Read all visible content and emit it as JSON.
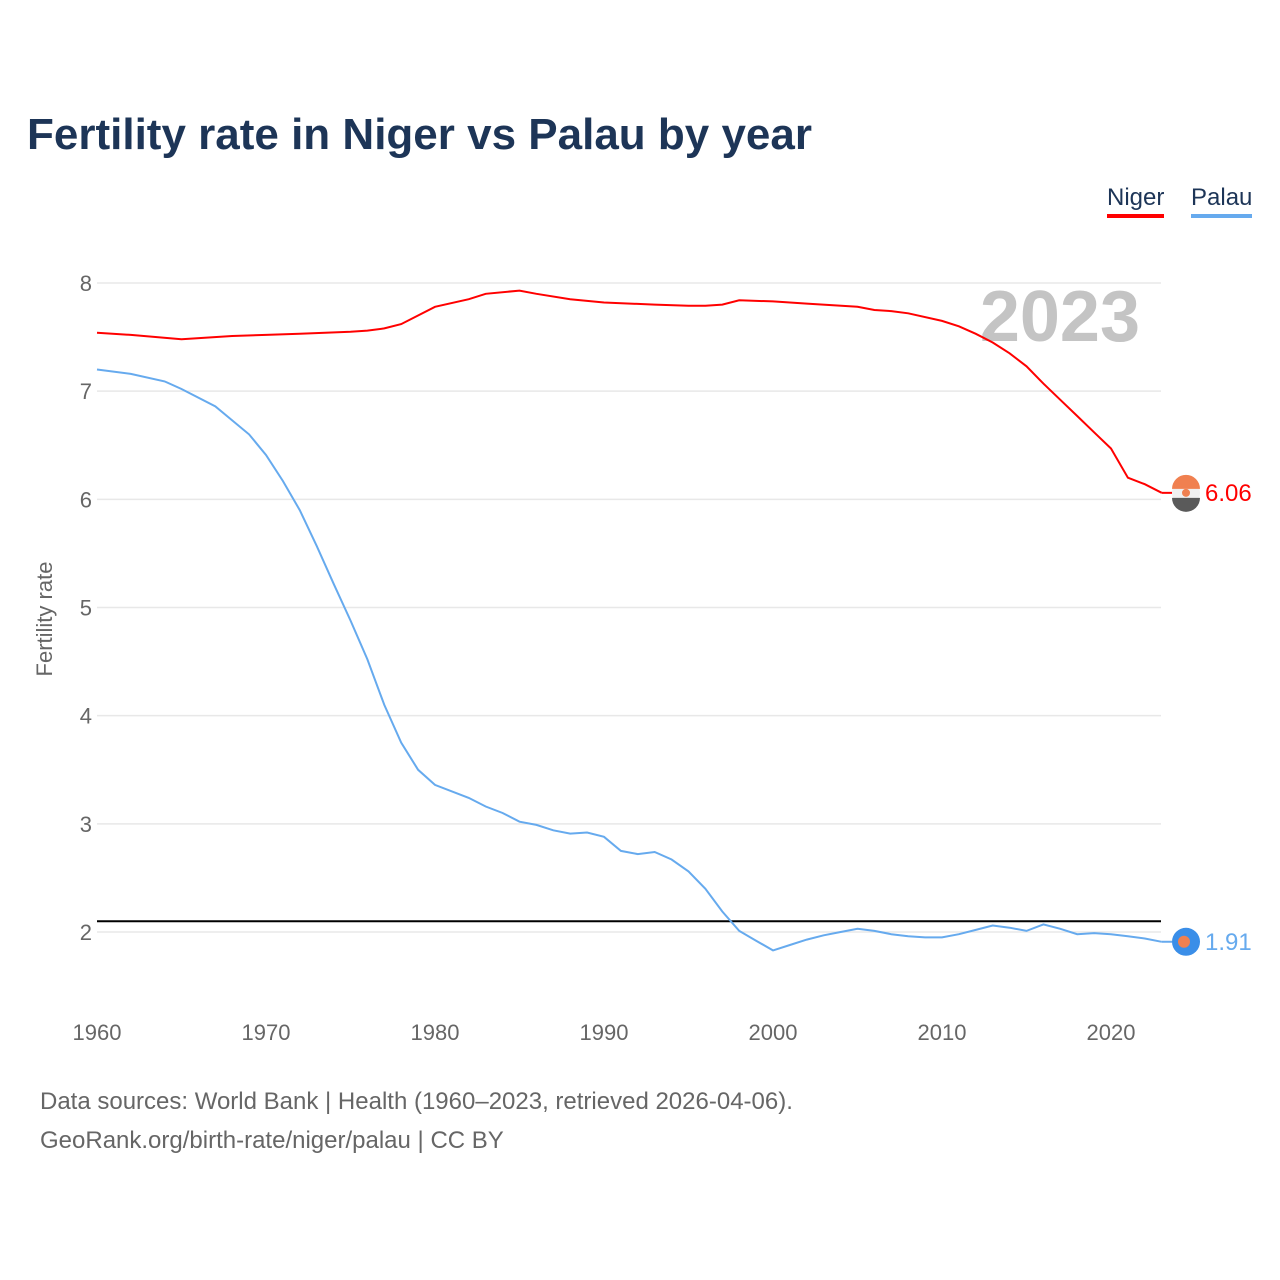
{
  "chart_data": {
    "type": "line",
    "title": "Fertility rate in Niger vs Palau by year",
    "ylabel": "Fertility rate",
    "xlabel": "",
    "xlim": [
      1960,
      2023
    ],
    "ylim": [
      1.5,
      8.2
    ],
    "x_ticks": [
      1960,
      1970,
      1980,
      1990,
      2000,
      2010,
      2020
    ],
    "y_ticks": [
      2,
      3,
      4,
      5,
      6,
      7,
      8
    ],
    "grid": true,
    "legend_position": "top-right",
    "year_label": "2023",
    "reference_line": 2.1,
    "series": [
      {
        "name": "Niger",
        "color": "#ff0000",
        "end_label": "6.06",
        "x": [
          1960,
          1962,
          1965,
          1968,
          1970,
          1972,
          1975,
          1976,
          1977,
          1978,
          1980,
          1982,
          1983,
          1985,
          1986,
          1988,
          1990,
          1993,
          1995,
          1996,
          1997,
          1998,
          2000,
          2002,
          2005,
          2006,
          2007,
          2008,
          2010,
          2011,
          2012,
          2013,
          2014,
          2015,
          2016,
          2017,
          2018,
          2019,
          2020,
          2021,
          2022,
          2023
        ],
        "y": [
          7.54,
          7.52,
          7.48,
          7.51,
          7.52,
          7.53,
          7.55,
          7.56,
          7.58,
          7.62,
          7.78,
          7.85,
          7.9,
          7.93,
          7.9,
          7.85,
          7.82,
          7.8,
          7.79,
          7.79,
          7.8,
          7.84,
          7.83,
          7.81,
          7.78,
          7.75,
          7.74,
          7.72,
          7.65,
          7.6,
          7.53,
          7.45,
          7.35,
          7.23,
          7.07,
          6.92,
          6.77,
          6.62,
          6.47,
          6.2,
          6.14,
          6.06
        ]
      },
      {
        "name": "Palau",
        "color": "#66aaee",
        "end_label": "1.91",
        "x": [
          1960,
          1962,
          1964,
          1965,
          1967,
          1969,
          1970,
          1971,
          1972,
          1973,
          1974,
          1975,
          1976,
          1977,
          1978,
          1979,
          1980,
          1982,
          1983,
          1984,
          1985,
          1986,
          1987,
          1988,
          1989,
          1990,
          1991,
          1992,
          1993,
          1994,
          1995,
          1996,
          1997,
          1998,
          1999,
          2000,
          2001,
          2002,
          2003,
          2004,
          2005,
          2006,
          2007,
          2008,
          2009,
          2010,
          2011,
          2012,
          2013,
          2014,
          2015,
          2016,
          2017,
          2018,
          2019,
          2020,
          2021,
          2022,
          2023
        ],
        "y": [
          7.2,
          7.16,
          7.09,
          7.02,
          6.86,
          6.6,
          6.41,
          6.17,
          5.9,
          5.57,
          5.22,
          4.88,
          4.52,
          4.1,
          3.75,
          3.5,
          3.36,
          3.24,
          3.16,
          3.1,
          3.02,
          2.99,
          2.94,
          2.91,
          2.92,
          2.88,
          2.75,
          2.72,
          2.74,
          2.67,
          2.56,
          2.4,
          2.19,
          2.01,
          1.92,
          1.83,
          1.88,
          1.93,
          1.97,
          2.0,
          2.03,
          2.01,
          1.98,
          1.96,
          1.95,
          1.95,
          1.98,
          2.02,
          2.06,
          2.04,
          2.01,
          2.07,
          2.03,
          1.98,
          1.99,
          1.98,
          1.96,
          1.94,
          1.91
        ]
      }
    ]
  },
  "footer": {
    "sources": "Data sources: World Bank | Health (1960–2023, retrieved 2026-04-06).",
    "credit": "GeoRank.org/birth-rate/niger/palau | CC BY"
  }
}
